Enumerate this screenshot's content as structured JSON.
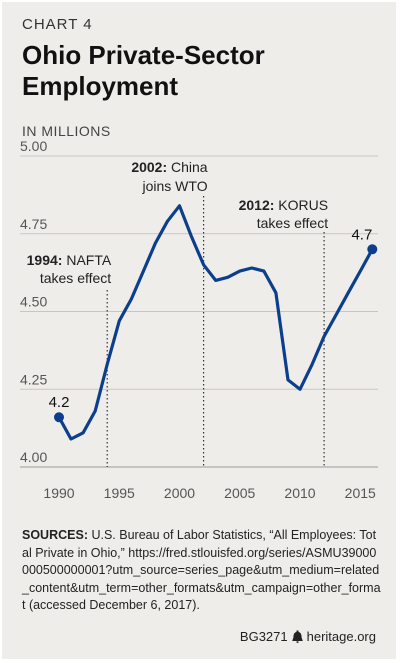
{
  "header": {
    "chart_label": "CHART 4",
    "title": "Ohio Private-Sector Employment",
    "units": "IN MILLIONS"
  },
  "chart_data": {
    "type": "line",
    "title": "Ohio Private-Sector Employment",
    "ylabel": "IN MILLIONS",
    "xlim": [
      1989,
      2017
    ],
    "ylim": [
      4.0,
      5.0
    ],
    "x_ticks": [
      1990,
      1995,
      2000,
      2005,
      2010,
      2015
    ],
    "y_ticks": [
      4.0,
      4.25,
      4.5,
      4.75,
      5.0
    ],
    "y_tick_labels": [
      "4.00",
      "4.25",
      "4.50",
      "4.75",
      "5.00"
    ],
    "grid": true,
    "line_color": "#0b3f8c",
    "series": [
      {
        "x": [
          1990,
          1991,
          1992,
          1993,
          1994,
          1995,
          1996,
          1997,
          1998,
          1999,
          2000,
          2001,
          2002,
          2003,
          2004,
          2005,
          2006,
          2007,
          2008,
          2009,
          2010,
          2011,
          2012,
          2013,
          2014,
          2015,
          2016
        ],
        "y": [
          4.16,
          4.09,
          4.11,
          4.18,
          4.33,
          4.47,
          4.54,
          4.63,
          4.72,
          4.79,
          4.84,
          4.74,
          4.65,
          4.6,
          4.61,
          4.63,
          4.64,
          4.63,
          4.56,
          4.28,
          4.25,
          4.33,
          4.42,
          4.49,
          4.56,
          4.63,
          4.7
        ]
      }
    ],
    "endpoint_labels": [
      {
        "x": 1990,
        "y": 4.16,
        "text": "4.2"
      },
      {
        "x": 2016,
        "y": 4.7,
        "text": "4.7"
      }
    ],
    "annotations": [
      {
        "x": 1994,
        "bold": "1994:",
        "line1_rest": " NAFTA",
        "line2": "takes effect"
      },
      {
        "x": 2002,
        "bold": "2002:",
        "line1_rest": " China",
        "line2": "joins WTO"
      },
      {
        "x": 2012,
        "bold": "2012:",
        "line1_rest": " KORUS",
        "line2": "takes effect"
      }
    ]
  },
  "sources": {
    "label": "SOURCES:",
    "text": " U.S. Bureau of Labor Statistics, “All Employees: Total Private in Ohio,” https://fred.stlouisfed.org/series/ASMU39000000500000001?utm_source=series_page&utm_medium=related_content&utm_term=other_formats&utm_campaign=other_format (accessed December 6, 2017)."
  },
  "footer": {
    "code": "BG3271",
    "site": "heritage.org",
    "icon": "liberty-bell-icon"
  }
}
